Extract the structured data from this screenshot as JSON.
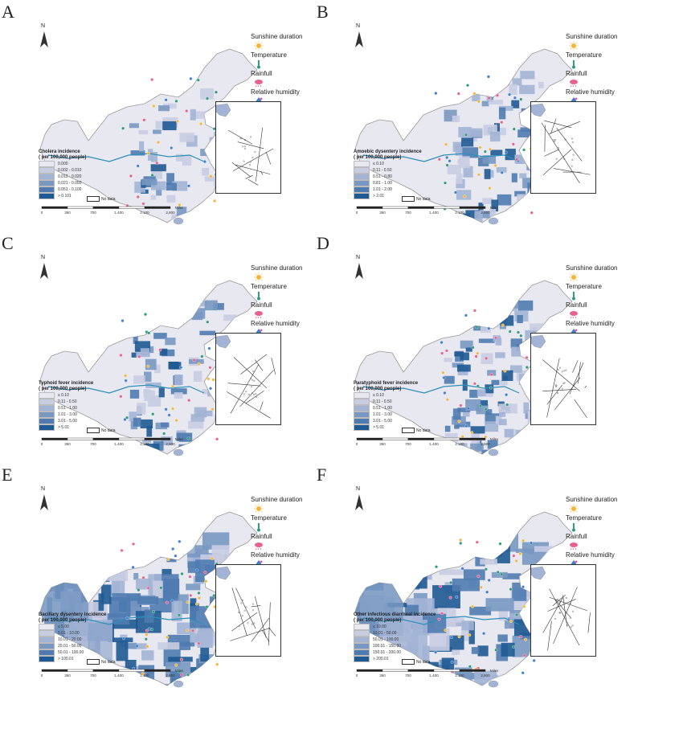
{
  "factors": [
    {
      "label": "Sunshine duration",
      "icon": "sun-icon",
      "color": "#f4b63a"
    },
    {
      "label": "Temperature",
      "icon": "thermometer-icon",
      "color": "#2f9a7e"
    },
    {
      "label": "Rainfull",
      "icon": "rain-cloud-icon",
      "color": "#e8608f"
    },
    {
      "label": "Relative humidity",
      "icon": "water-drop-icon",
      "color": "#3b7fd0"
    }
  ],
  "north_label": "N",
  "nodata_label": "No data",
  "scale": {
    "labels": [
      "0",
      "350",
      "700",
      "1,400",
      "2,100",
      "2,800"
    ],
    "unit": "Miles"
  },
  "panels": [
    {
      "letter": "A",
      "legend_title": "Cholera incidence",
      "legend_subtitle": "( per 100,000 people)",
      "classes": [
        "0.000",
        "0.002 - 0.010",
        "0.012 - 0.020",
        "0.021 - 0.050",
        "0.051 - 0.100",
        "> 0.101"
      ],
      "colors": [
        "#e8e8f1",
        "#c9cde2",
        "#a2b4d5",
        "#7898c2",
        "#4f7bb0",
        "#1f5a94"
      ],
      "intensity": 0.15
    },
    {
      "letter": "B",
      "legend_title": "Amoebic dysentery incidence",
      "legend_subtitle": "( per 100,000 people)",
      "classes": [
        "≤ 0.10",
        "0.11 - 0.50",
        "0.51 - 0.80",
        "0.81 - 1.00",
        "1.01 - 2.00",
        "> 2.01"
      ],
      "colors": [
        "#e8e8f1",
        "#c9cde2",
        "#a2b4d5",
        "#7898c2",
        "#4f7bb0",
        "#1f5a94"
      ],
      "intensity": 0.3
    },
    {
      "letter": "C",
      "legend_title": "Typhoid fever incidence",
      "legend_subtitle": "( per 100,000 people)",
      "classes": [
        "≤ 0.10",
        "0.11 - 0.50",
        "0.51 - 1.00",
        "1.01 - 3.00",
        "3.01 - 5.00",
        "> 5.01"
      ],
      "colors": [
        "#e8e8f1",
        "#c9cde2",
        "#a2b4d5",
        "#7898c2",
        "#4f7bb0",
        "#1f5a94"
      ],
      "intensity": 0.25
    },
    {
      "letter": "D",
      "legend_title": "Paratyphoid fever incidence",
      "legend_subtitle": "( per 100,000 people)",
      "classes": [
        "≤ 0.10",
        "0.11 - 0.50",
        "0.51 - 1.00",
        "1.01 - 3.00",
        "3.01 - 5.00",
        "> 5.01"
      ],
      "colors": [
        "#e8e8f1",
        "#c9cde2",
        "#a2b4d5",
        "#7898c2",
        "#4f7bb0",
        "#1f5a94"
      ],
      "intensity": 0.45
    },
    {
      "letter": "E",
      "legend_title": "Bacillary dysentery incidence",
      "legend_subtitle": "( per 100,000 people)",
      "classes": [
        "≤ 5.00",
        "5.01 - 10.00",
        "10.01 - 20.00",
        "20.01 - 50.00",
        "50.01 - 100.00",
        "> 100.01"
      ],
      "colors": [
        "#e8e8f1",
        "#c9cde2",
        "#a2b4d5",
        "#7898c2",
        "#4f7bb0",
        "#1f5a94"
      ],
      "intensity": 0.7
    },
    {
      "letter": "F",
      "legend_title": "Other infectious diarrheal incidence",
      "legend_subtitle": "( per 100,000 people)",
      "classes": [
        "≤ 10.00",
        "10.01 - 50.00",
        "50.01 - 100.00",
        "100.01 - 150.00",
        "150.01 - 200.00",
        "> 200.01"
      ],
      "colors": [
        "#e8e8f1",
        "#c9cde2",
        "#a2b4d5",
        "#7898c2",
        "#4f7bb0",
        "#1f5a94"
      ],
      "intensity": 0.6
    }
  ]
}
